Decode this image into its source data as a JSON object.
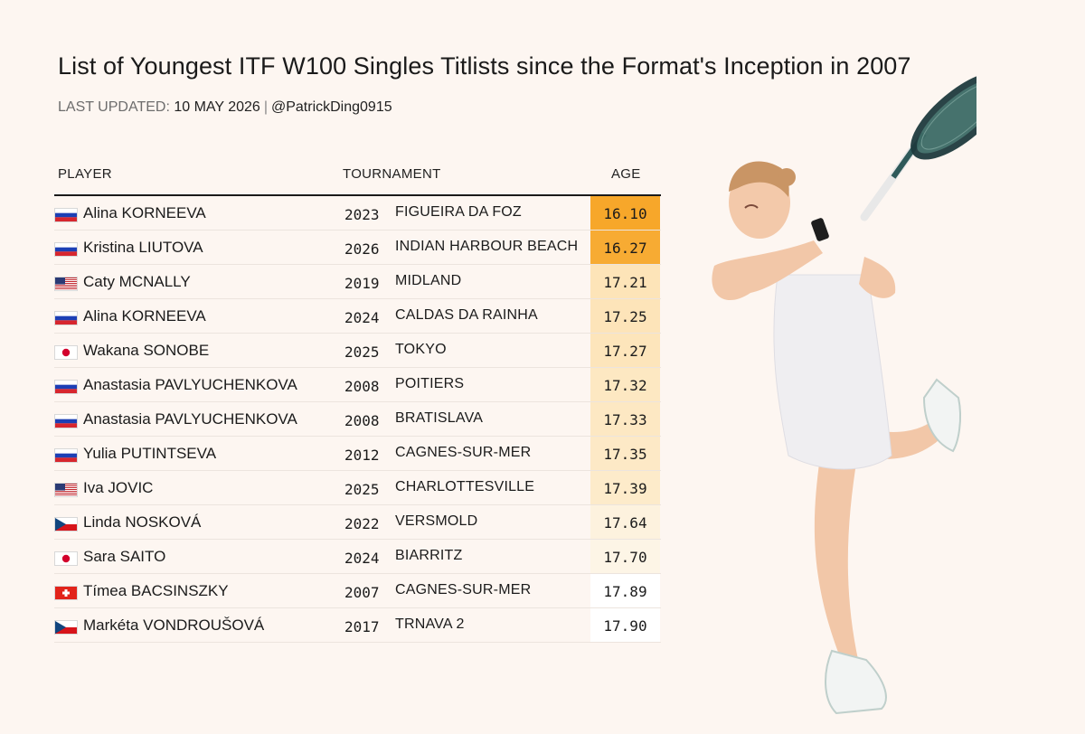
{
  "header": {
    "title": "List of Youngest ITF W100 Singles Titlists since the Format's Inception in 2007",
    "updated_label": "LAST UPDATED:",
    "updated_date": "10 MAY 2026",
    "separator": "|",
    "handle": "@PatrickDing0915"
  },
  "columns": {
    "player": "PLAYER",
    "tournament": "TOURNAMENT",
    "age": "AGE"
  },
  "rows": [
    {
      "flag": "RUS",
      "name": "Alina KORNEEVA",
      "year": "2023",
      "event": "FIGUEIRA DA FOZ",
      "age": "16.10",
      "age_color": "#f7a72a"
    },
    {
      "flag": "RUS",
      "name": "Kristina LIUTOVA",
      "year": "2026",
      "event": "INDIAN HARBOUR BEACH",
      "age": "16.27",
      "age_color": "#f7ab33"
    },
    {
      "flag": "USA",
      "name": "Caty MCNALLY",
      "year": "2019",
      "event": "MIDLAND",
      "age": "17.21",
      "age_color": "#fde4b8"
    },
    {
      "flag": "RUS",
      "name": "Alina KORNEEVA",
      "year": "2024",
      "event": "CALDAS DA RAINHA",
      "age": "17.25",
      "age_color": "#fde4b9"
    },
    {
      "flag": "JPN",
      "name": "Wakana SONOBE",
      "year": "2025",
      "event": "TOKYO",
      "age": "17.27",
      "age_color": "#fde5bb"
    },
    {
      "flag": "RUS",
      "name": "Anastasia PAVLYUCHENKOVA",
      "year": "2008",
      "event": "POITIERS",
      "age": "17.32",
      "age_color": "#fde8c2"
    },
    {
      "flag": "RUS",
      "name": "Anastasia PAVLYUCHENKOVA",
      "year": "2008",
      "event": "BRATISLAVA",
      "age": "17.33",
      "age_color": "#fde8c3"
    },
    {
      "flag": "RUS",
      "name": "Yulia PUTINTSEVA",
      "year": "2012",
      "event": "CAGNES-SUR-MER",
      "age": "17.35",
      "age_color": "#fde9c6"
    },
    {
      "flag": "USA",
      "name": "Iva JOVIC",
      "year": "2025",
      "event": "CHARLOTTESVILLE",
      "age": "17.39",
      "age_color": "#fdebca"
    },
    {
      "flag": "CZE",
      "name": "Linda NOSKOVÁ",
      "year": "2022",
      "event": "VERSMOLD",
      "age": "17.64",
      "age_color": "#fdf2de"
    },
    {
      "flag": "JPN",
      "name": "Sara SAITO",
      "year": "2024",
      "event": "BIARRITZ",
      "age": "17.70",
      "age_color": "#fdf5e6"
    },
    {
      "flag": "SUI",
      "name": "Tímea BACSINSZKY",
      "year": "2007",
      "event": "CAGNES-SUR-MER",
      "age": "17.89",
      "age_color": "#ffffff"
    },
    {
      "flag": "CZE",
      "name": "Markéta VONDROUŠOVÁ",
      "year": "2017",
      "event": "TRNAVA 2",
      "age": "17.90",
      "age_color": "#ffffff"
    }
  ],
  "colors": {
    "background": "#fdf6f1",
    "youngest": "#f7a72a",
    "oldest": "#ffffff"
  },
  "image": {
    "subject": "tennis-player-photo"
  }
}
